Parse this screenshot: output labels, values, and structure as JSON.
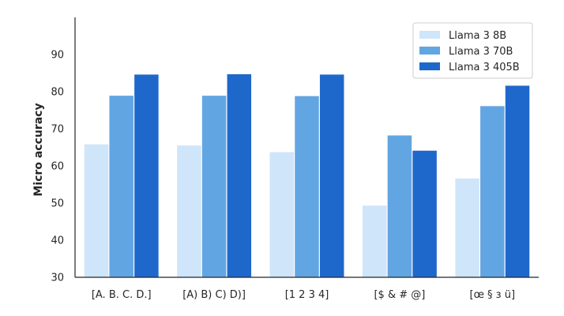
{
  "chart_data": {
    "type": "bar",
    "title": "",
    "xlabel": "",
    "ylabel": "Micro accuracy",
    "ylim": [
      30,
      100
    ],
    "yticks": [
      30,
      40,
      50,
      60,
      70,
      80,
      90
    ],
    "categories": [
      "[A. B. C. D.]",
      "[A) B) C) D)]",
      "[1 2 3 4]",
      "[$ & # @]",
      "[œ § з ü]"
    ],
    "series": [
      {
        "name": "Llama 3 8B",
        "color": "#cfe5fa",
        "values": [
          65.8,
          65.5,
          63.7,
          49.3,
          56.6
        ]
      },
      {
        "name": "Llama 3 70B",
        "color": "#62a5e3",
        "values": [
          78.9,
          78.9,
          78.8,
          68.2,
          76.1
        ]
      },
      {
        "name": "Llama 3 405B",
        "color": "#1f68cb",
        "values": [
          84.6,
          84.7,
          84.6,
          64.1,
          81.6
        ]
      }
    ],
    "legend_position": "top-right",
    "grid": false
  }
}
